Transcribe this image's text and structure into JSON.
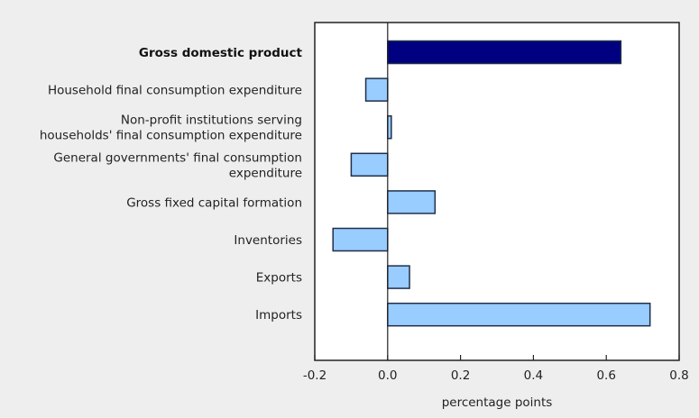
{
  "chart_data": {
    "type": "bar",
    "orientation": "horizontal",
    "title": "",
    "xlabel": "percentage points",
    "ylabel": "",
    "xlim": [
      -0.2,
      0.8
    ],
    "xticks": [
      -0.2,
      0.0,
      0.2,
      0.4,
      0.6,
      0.8
    ],
    "xtick_labels": [
      "-0.2",
      "0.0",
      "0.2",
      "0.4",
      "0.6",
      "0.8"
    ],
    "grid": false,
    "categories": [
      {
        "lines": [
          "Gross domestic product"
        ],
        "bold": true
      },
      {
        "lines": [
          "Household final consumption expenditure"
        ],
        "bold": false
      },
      {
        "lines": [
          "Non-profit institutions serving",
          "households' final consumption expenditure"
        ],
        "bold": false
      },
      {
        "lines": [
          "General governments' final consumption",
          "expenditure"
        ],
        "bold": false
      },
      {
        "lines": [
          "Gross fixed capital formation"
        ],
        "bold": false
      },
      {
        "lines": [
          "Inventories"
        ],
        "bold": false
      },
      {
        "lines": [
          "Exports"
        ],
        "bold": false
      },
      {
        "lines": [
          "Imports"
        ],
        "bold": false
      }
    ],
    "values": [
      0.64,
      -0.06,
      0.01,
      -0.1,
      0.13,
      -0.15,
      0.06,
      0.72
    ],
    "colors": {
      "highlight": "#000080",
      "default": "#99ccff",
      "bar_stroke": "#1f2f4a",
      "axis": "#222222",
      "plot_bg": "#ffffff",
      "page_bg": "#eeeeee"
    }
  }
}
